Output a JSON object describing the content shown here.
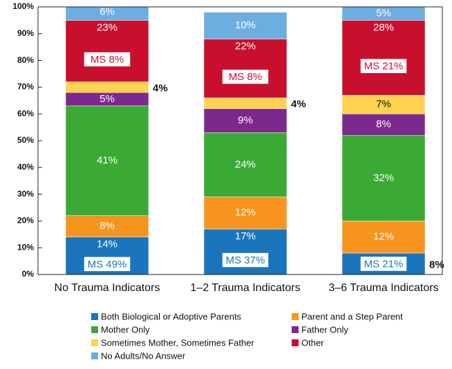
{
  "chart_data": {
    "type": "stacked_bar",
    "categories": [
      "No Trauma Indicators",
      "1–2 Trauma Indicators",
      "3–6 Trauma Indicators"
    ],
    "series": [
      {
        "name": "Both Biological or Adoptive Parents",
        "color": "#1a75bc",
        "values": [
          14,
          17,
          8
        ],
        "value_labels": [
          "14%",
          "17%",
          "8%"
        ]
      },
      {
        "name": "Parent and a Step Parent",
        "color": "#f7941d",
        "values": [
          8,
          12,
          12
        ],
        "value_labels": [
          "8%",
          "12%",
          "12%"
        ]
      },
      {
        "name": "Mother Only",
        "color": "#3aaa35",
        "values": [
          41,
          24,
          32
        ],
        "value_labels": [
          "41%",
          "24%",
          "32%"
        ]
      },
      {
        "name": "Father Only",
        "color": "#7b2a8b",
        "values": [
          5,
          9,
          8
        ],
        "value_labels": [
          "5%",
          "9%",
          "8%"
        ]
      },
      {
        "name": "Sometimes Mother, Sometimes Father",
        "color": "#ffd24f",
        "values": [
          4,
          4,
          7
        ],
        "value_labels": [
          "4%",
          "4%",
          "7%"
        ]
      },
      {
        "name": "Other",
        "color": "#c8102e",
        "values": [
          23,
          22,
          28
        ],
        "value_labels": [
          "23%",
          "22%",
          "28%"
        ]
      },
      {
        "name": "No Adults/No Answer",
        "color": "#6caee0",
        "values": [
          6,
          10,
          5
        ],
        "value_labels": [
          "6%",
          "10%",
          "5%"
        ]
      }
    ],
    "annotations": [
      {
        "text": "MS 49%",
        "category": 0,
        "series": 0
      },
      {
        "text": "MS 8%",
        "category": 0,
        "series": 5
      },
      {
        "text": "MS 37%",
        "category": 1,
        "series": 0
      },
      {
        "text": "MS 8%",
        "category": 1,
        "series": 5
      },
      {
        "text": "MS 21%",
        "category": 2,
        "series": 0
      },
      {
        "text": "MS 21%",
        "category": 2,
        "series": 5
      }
    ],
    "ylim": [
      0,
      100
    ],
    "yticks": [
      {
        "value": 0,
        "label": "0%"
      },
      {
        "value": 10,
        "label": "10%"
      },
      {
        "value": 20,
        "label": "20%"
      },
      {
        "value": 30,
        "label": "30%"
      },
      {
        "value": 40,
        "label": "40%"
      },
      {
        "value": 50,
        "label": "50%"
      },
      {
        "value": 60,
        "label": "60%"
      },
      {
        "value": 70,
        "label": "70%"
      },
      {
        "value": 80,
        "label": "80%"
      },
      {
        "value": 90,
        "label": "90%"
      },
      {
        "value": 100,
        "label": "100%"
      }
    ],
    "grid": false
  }
}
